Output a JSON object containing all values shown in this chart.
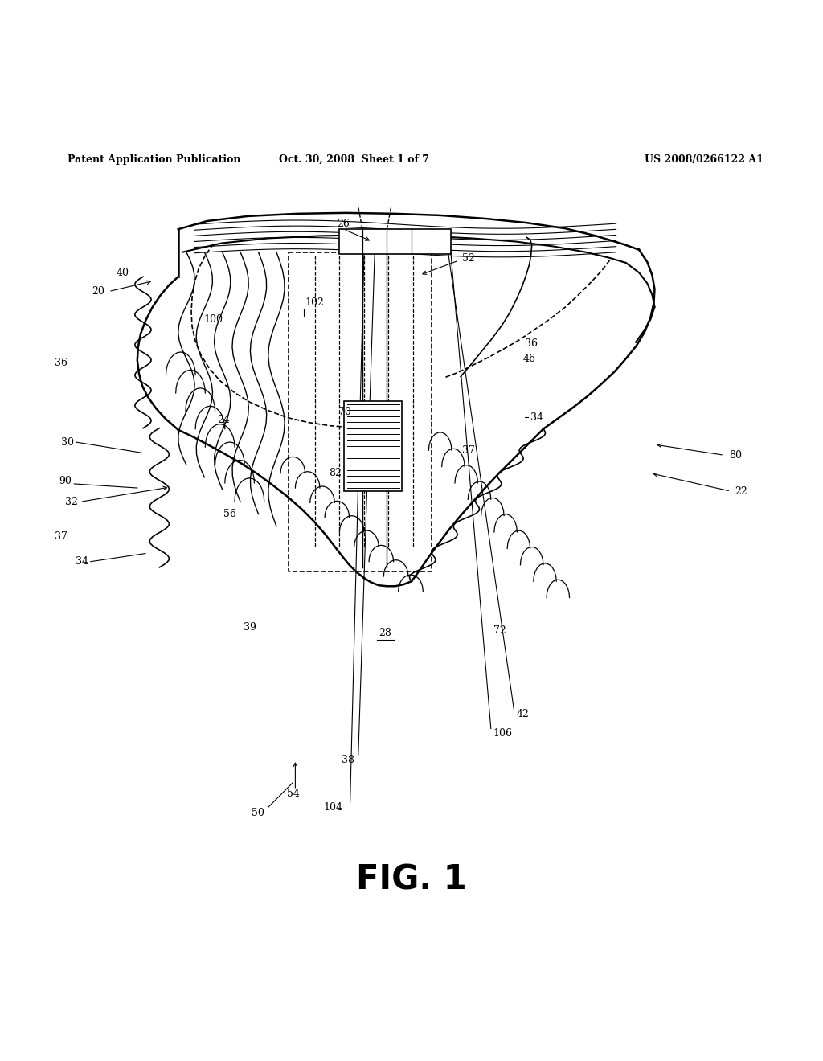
{
  "bg_color": "#ffffff",
  "line_color": "#000000",
  "header_left": "Patent Application Publication",
  "header_mid": "Oct. 30, 2008  Sheet 1 of 7",
  "header_right": "US 2008/0266122 A1",
  "fig_label": "FIG. 1"
}
